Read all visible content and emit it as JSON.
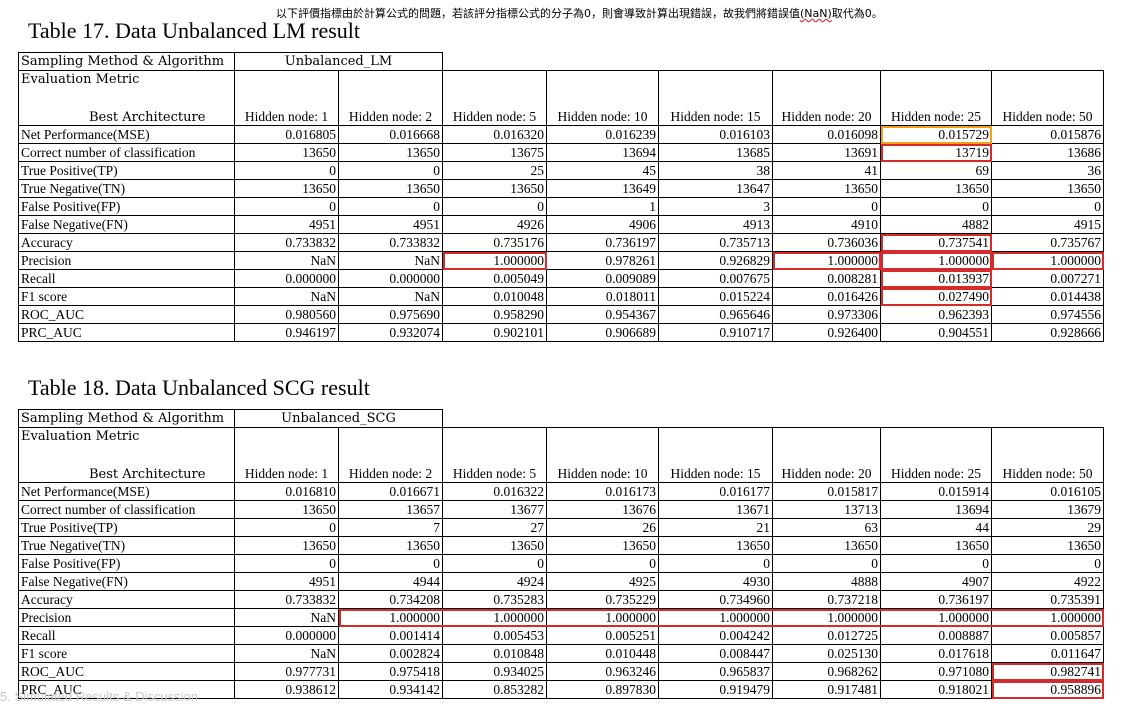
{
  "note": {
    "before": "以下評價指標由於計算公式的問題，若該評分指標公式的分子為0，則會導致計算出現錯誤，故我們將錯誤值",
    "wavy": "(NaN)",
    "after": "取代為0。"
  },
  "footer_ghost": "5. Simulated Results & Discussion",
  "tables": [
    {
      "caption": "Table 17. Data Unbalanced LM result",
      "sampling_label": "Sampling Method & Algorithm",
      "method": "Unbalanced_LM",
      "eval_label": "Evaluation Metric",
      "best_label": "Best Architecture",
      "columns": [
        "Hidden node: 1",
        "Hidden node: 2",
        "Hidden node: 5",
        "Hidden node: 10",
        "Hidden node: 15",
        "Hidden node: 20",
        "Hidden node: 25",
        "Hidden node: 50"
      ],
      "rows": [
        {
          "metric": "Net Performance(MSE)",
          "values": [
            "0.016805",
            "0.016668",
            "0.016320",
            "0.016239",
            "0.016103",
            "0.016098",
            "0.015729",
            "0.015876"
          ]
        },
        {
          "metric": "Correct number of classification",
          "values": [
            "13650",
            "13650",
            "13675",
            "13694",
            "13685",
            "13691",
            "13719",
            "13686"
          ]
        },
        {
          "metric": "True Positive(TP)",
          "values": [
            "0",
            "0",
            "25",
            "45",
            "38",
            "41",
            "69",
            "36"
          ]
        },
        {
          "metric": "True Negative(TN)",
          "values": [
            "13650",
            "13650",
            "13650",
            "13649",
            "13647",
            "13650",
            "13650",
            "13650"
          ]
        },
        {
          "metric": "False Positive(FP)",
          "values": [
            "0",
            "0",
            "0",
            "1",
            "3",
            "0",
            "0",
            "0"
          ]
        },
        {
          "metric": "False Negative(FN)",
          "values": [
            "4951",
            "4951",
            "4926",
            "4906",
            "4913",
            "4910",
            "4882",
            "4915"
          ]
        },
        {
          "metric": "Accuracy",
          "values": [
            "0.733832",
            "0.733832",
            "0.735176",
            "0.736197",
            "0.735713",
            "0.736036",
            "0.737541",
            "0.735767"
          ]
        },
        {
          "metric": "Precision",
          "values": [
            "NaN",
            "NaN",
            "1.000000",
            "0.978261",
            "0.926829",
            "1.000000",
            "1.000000",
            "1.000000"
          ]
        },
        {
          "metric": "Recall",
          "values": [
            "0.000000",
            "0.000000",
            "0.005049",
            "0.009089",
            "0.007675",
            "0.008281",
            "0.013937",
            "0.007271"
          ]
        },
        {
          "metric": "F1 score",
          "values": [
            "NaN",
            "NaN",
            "0.010048",
            "0.018011",
            "0.015224",
            "0.016426",
            "0.027490",
            "0.014438"
          ]
        },
        {
          "metric": "ROC_AUC",
          "values": [
            "0.980560",
            "0.975690",
            "0.958290",
            "0.954367",
            "0.965646",
            "0.973306",
            "0.962393",
            "0.974556"
          ]
        },
        {
          "metric": "PRC_AUC",
          "values": [
            "0.946197",
            "0.932074",
            "0.902101",
            "0.906689",
            "0.910717",
            "0.926400",
            "0.904551",
            "0.928666"
          ]
        }
      ]
    },
    {
      "caption": "Table 18. Data Unbalanced SCG result",
      "sampling_label": "Sampling Method & Algorithm",
      "method": "Unbalanced_SCG",
      "eval_label": "Evaluation Metric",
      "best_label": "Best Architecture",
      "columns": [
        "Hidden node: 1",
        "Hidden node: 2",
        "Hidden node: 5",
        "Hidden node: 10",
        "Hidden node: 15",
        "Hidden node: 20",
        "Hidden node: 25",
        "Hidden node: 50"
      ],
      "rows": [
        {
          "metric": "Net Performance(MSE)",
          "values": [
            "0.016810",
            "0.016671",
            "0.016322",
            "0.016173",
            "0.016177",
            "0.015817",
            "0.015914",
            "0.016105"
          ]
        },
        {
          "metric": "Correct number of classification",
          "values": [
            "13650",
            "13657",
            "13677",
            "13676",
            "13671",
            "13713",
            "13694",
            "13679"
          ]
        },
        {
          "metric": "True Positive(TP)",
          "values": [
            "0",
            "7",
            "27",
            "26",
            "21",
            "63",
            "44",
            "29"
          ]
        },
        {
          "metric": "True Negative(TN)",
          "values": [
            "13650",
            "13650",
            "13650",
            "13650",
            "13650",
            "13650",
            "13650",
            "13650"
          ]
        },
        {
          "metric": "False Positive(FP)",
          "values": [
            "0",
            "0",
            "0",
            "0",
            "0",
            "0",
            "0",
            "0"
          ]
        },
        {
          "metric": "False Negative(FN)",
          "values": [
            "4951",
            "4944",
            "4924",
            "4925",
            "4930",
            "4888",
            "4907",
            "4922"
          ]
        },
        {
          "metric": "Accuracy",
          "values": [
            "0.733832",
            "0.734208",
            "0.735283",
            "0.735229",
            "0.734960",
            "0.737218",
            "0.736197",
            "0.735391"
          ]
        },
        {
          "metric": "Precision",
          "values": [
            "NaN",
            "1.000000",
            "1.000000",
            "1.000000",
            "1.000000",
            "1.000000",
            "1.000000",
            "1.000000"
          ]
        },
        {
          "metric": "Recall",
          "values": [
            "0.000000",
            "0.001414",
            "0.005453",
            "0.005251",
            "0.004242",
            "0.012725",
            "0.008887",
            "0.005857"
          ]
        },
        {
          "metric": "F1 score",
          "values": [
            "NaN",
            "0.002824",
            "0.010848",
            "0.010448",
            "0.008447",
            "0.025130",
            "0.017618",
            "0.011647"
          ]
        },
        {
          "metric": "ROC_AUC",
          "values": [
            "0.977731",
            "0.975418",
            "0.934025",
            "0.963246",
            "0.965837",
            "0.968262",
            "0.971080",
            "0.982741"
          ]
        },
        {
          "metric": "PRC_AUC",
          "values": [
            "0.938612",
            "0.934142",
            "0.853282",
            "0.897830",
            "0.919479",
            "0.917481",
            "0.918021",
            "0.958896"
          ]
        }
      ]
    }
  ],
  "highlight_colors": {
    "red": "#d62b2b",
    "orange": "#f0a21a"
  }
}
